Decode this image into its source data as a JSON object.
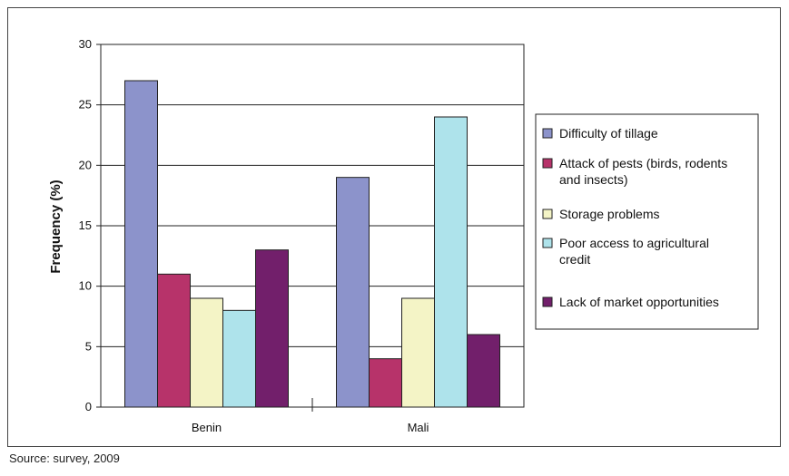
{
  "chart_data": {
    "type": "bar",
    "ylabel": "Frequency (%)",
    "xlabel": "",
    "title": "",
    "ylim": [
      0,
      30
    ],
    "yticks": [
      0,
      5,
      10,
      15,
      20,
      25,
      30
    ],
    "categories": [
      "Benin",
      "Mali"
    ],
    "grid": true,
    "legend_position": "right",
    "series": [
      {
        "name": "Difficulty of tillage",
        "lines": [
          "Difficulty of tillage"
        ],
        "color": "#8C93CB",
        "values": [
          27,
          19
        ]
      },
      {
        "name": "Attack of pests (birds, rodents and insects)",
        "lines": [
          "Attack of pests (birds, rodents",
          "and insects)"
        ],
        "color": "#B7336A",
        "values": [
          11,
          4
        ]
      },
      {
        "name": "Storage problems",
        "lines": [
          "Storage problems"
        ],
        "color": "#F4F4C6",
        "values": [
          9,
          9
        ]
      },
      {
        "name": "Poor access to agricultural credit",
        "lines": [
          "Poor access to agricultural",
          "credit"
        ],
        "color": "#AEE3EB",
        "values": [
          8,
          24
        ]
      },
      {
        "name": "Lack of market opportunities",
        "lines": [
          "Lack of market opportunities"
        ],
        "color": "#721F6B",
        "values": [
          13,
          6
        ]
      }
    ]
  },
  "source": "Source: survey, 2009"
}
